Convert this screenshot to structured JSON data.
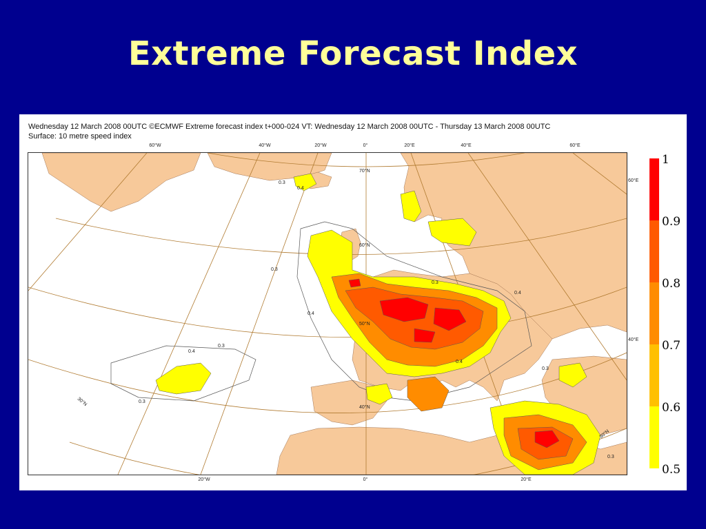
{
  "slide": {
    "title": "Extreme Forecast Index"
  },
  "figure": {
    "header_line1": "Wednesday 12 March 2008 00UTC ©ECMWF Extreme forecast index t+000-024 VT: Wednesday 12 March 2008 00UTC - Thursday 13 March 2008 00UTC",
    "header_line2": "Surface: 10 metre speed index",
    "lon_labels_top": [
      "60°W",
      "40°W",
      "20°W",
      "0°",
      "20°E",
      "40°E",
      "60°E"
    ],
    "lon_labels_bottom": [
      "20°W",
      "0°",
      "20°E"
    ],
    "lat_labels_right": [
      "60°E",
      "40°E"
    ],
    "lat_labels_inner": [
      "70°N",
      "60°N",
      "50°N",
      "40°N",
      "30°N",
      "30°N"
    ],
    "contour_labels": [
      "0.3",
      "0.3",
      "0.4",
      "0.3",
      "0.4",
      "0.3",
      "0.4",
      "0.3",
      "0.4",
      "0.3",
      "0.4",
      "0.3"
    ]
  },
  "legend": {
    "ticks": [
      "1",
      "0.9",
      "0.8",
      "0.7",
      "0.6",
      "0.5"
    ],
    "colors": [
      "#ff0000",
      "#ff5a00",
      "#ff8c00",
      "#ffc000",
      "#ffff00"
    ]
  },
  "colors": {
    "background": "#00008f",
    "title": "#ffff99",
    "land": "#f7c99a",
    "graticule": "#b07a30"
  }
}
